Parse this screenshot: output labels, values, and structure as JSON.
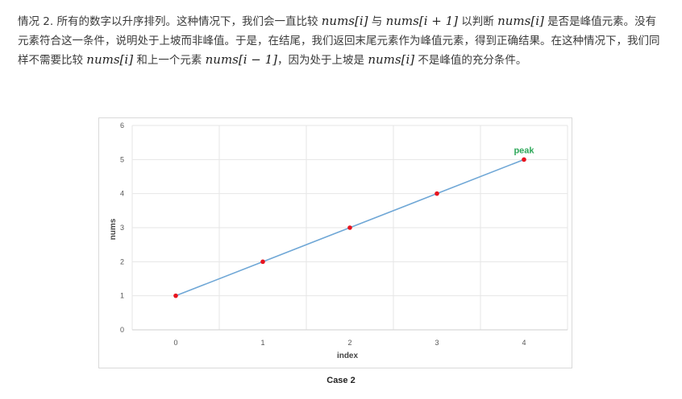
{
  "paragraph": {
    "p1": "情况 2. 所有的数字以升序排列。这种情况下，我们会一直比较 ",
    "m1": "nums[i]",
    "p2": " 与 ",
    "m2": "nums[i + 1]",
    "p3": " 以判断 ",
    "m3": "nums[i]",
    "p4": " 是否是峰值元素。没有元素符合这一条件，说明处于上坡而非峰值。于是，在结尾，我们返回末尾元素作为峰值元素，得到正确结果。在这种情况下，我们同样不需要比较 ",
    "m4": "nums[i]",
    "p5": " 和上一个元素 ",
    "m5": "nums[i − 1]",
    "p6": "，因为处于上坡是 ",
    "m6": "nums[i]",
    "p7": " 不是峰值的充分条件。"
  },
  "chart_data": {
    "type": "line",
    "x": [
      0,
      1,
      2,
      3,
      4
    ],
    "series": [
      {
        "values": [
          1,
          2,
          3,
          4,
          5
        ]
      }
    ],
    "xlabel": "index",
    "ylabel": "nums",
    "xlim": [
      0,
      4
    ],
    "ylim": [
      0,
      6
    ],
    "yticks": [
      0,
      1,
      2,
      3,
      4,
      5,
      6
    ],
    "xticks": [
      0,
      1,
      2,
      3,
      4
    ],
    "grid": true,
    "annotations": [
      {
        "text": "peak",
        "x": 4,
        "y": 5
      }
    ],
    "colors": {
      "line": "#6fa7d6",
      "point": "#e8141e",
      "annotation": "#2ea85a",
      "grid": "#e6e6e6"
    }
  },
  "caption": "Case 2"
}
